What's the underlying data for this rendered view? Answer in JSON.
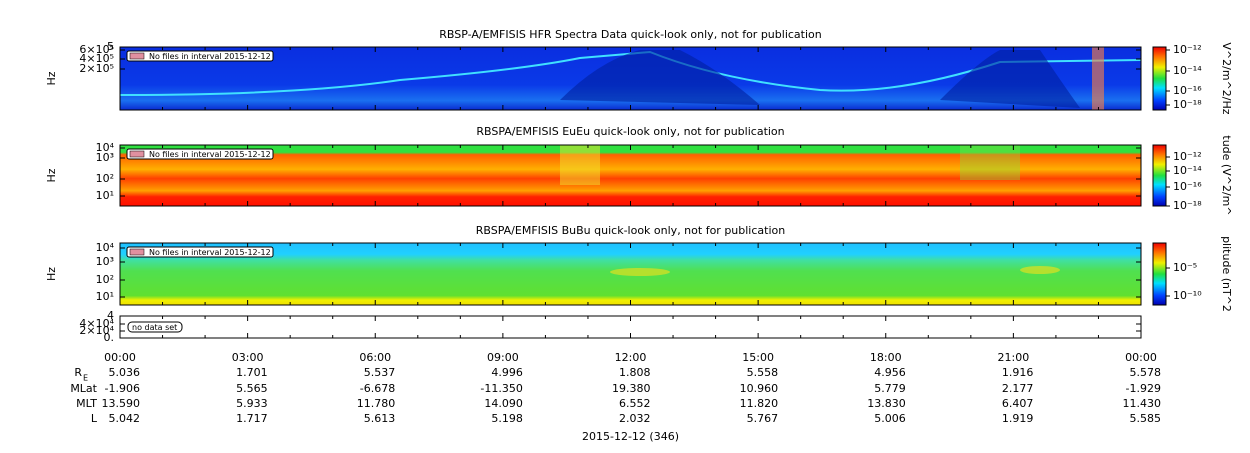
{
  "panels": [
    {
      "title": "RBSP-A/EMFISIS  HFR Spectra Data quick-look only, not for publication",
      "ylabel": "Hz",
      "yticks": [
        "5",
        "6×10⁵",
        "4×10⁵",
        "2×10⁵"
      ],
      "note": "No files in interval 2015-12-12",
      "colorbar_label": "V^2/m^2/Hz",
      "colorbar_ticks": [
        "10⁻¹²",
        "10⁻¹⁴",
        "10⁻¹⁶",
        "10⁻¹⁸"
      ]
    },
    {
      "title": "RBSPA/EMFISIS  EuEu quick-look only, not for publication",
      "ylabel": "Hz",
      "yticks": [
        "10⁴",
        "10³",
        "10²",
        "10¹"
      ],
      "note": "No files in interval 2015-12-12",
      "colorbar_label": "tude (V^2/m^",
      "colorbar_ticks": [
        "10⁻¹²",
        "10⁻¹⁴",
        "10⁻¹⁶",
        "10⁻¹⁸"
      ]
    },
    {
      "title": "RBSPA/EMFISIS  BuBu quick-look only, not for publication",
      "ylabel": "Hz",
      "yticks": [
        "10⁴",
        "10³",
        "10²",
        "10¹"
      ],
      "note": "No files in interval 2015-12-12",
      "colorbar_label": "plitude (nT^2",
      "colorbar_ticks": [
        "10⁻⁵",
        "10⁻¹⁰"
      ]
    },
    {
      "yticks": [
        "4",
        "4×10⁴",
        "2×10⁴",
        "0."
      ],
      "note": "no data set"
    }
  ],
  "time_axis": {
    "ticks": [
      "00:00",
      "03:00",
      "06:00",
      "09:00",
      "12:00",
      "15:00",
      "18:00",
      "21:00",
      "00:00"
    ],
    "rows": [
      {
        "label": "R",
        "sub": "E",
        "values": [
          "5.036",
          "1.701",
          "5.537",
          "4.996",
          "1.808",
          "5.558",
          "4.956",
          "1.916",
          "5.578"
        ]
      },
      {
        "label": "MLat",
        "values": [
          "-1.906",
          "5.565",
          "-6.678",
          "-11.350",
          "19.380",
          "10.960",
          "5.779",
          "2.177",
          "-1.929"
        ]
      },
      {
        "label": "MLT",
        "values": [
          "13.590",
          "5.933",
          "11.780",
          "14.090",
          "6.552",
          "11.820",
          "13.830",
          "6.407",
          "11.430"
        ]
      },
      {
        "label": "L",
        "values": [
          "5.042",
          "1.717",
          "5.613",
          "5.198",
          "2.032",
          "5.767",
          "5.006",
          "1.919",
          "5.585"
        ]
      }
    ],
    "date": "2015-12-12 (346)"
  }
}
